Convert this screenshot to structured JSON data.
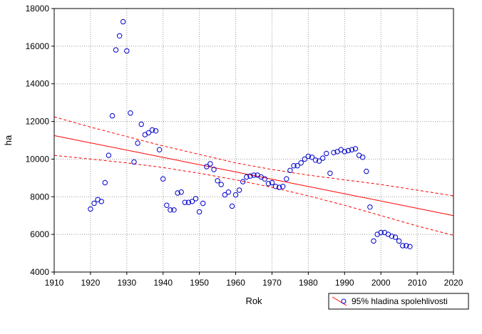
{
  "chart_data": {
    "type": "scatter",
    "title": "",
    "xlabel": "Rok",
    "ylabel": "ha",
    "xlim": [
      1910,
      2020
    ],
    "ylim": [
      4000,
      18000
    ],
    "xticks": [
      1910,
      1920,
      1930,
      1940,
      1950,
      1960,
      1970,
      1980,
      1990,
      2000,
      2010,
      2020
    ],
    "yticks": [
      4000,
      6000,
      8000,
      10000,
      12000,
      14000,
      16000,
      18000
    ],
    "grid": true,
    "legend_position": "bottom-right",
    "legend_label": "95% hladina spolehlivosti",
    "colors": {
      "points": "#0000cc",
      "fit": "#ff0000",
      "ci": "#ff0000"
    },
    "points": {
      "x": [
        1920,
        1921,
        1922,
        1923,
        1924,
        1925,
        1926,
        1927,
        1928,
        1929,
        1930,
        1931,
        1932,
        1933,
        1934,
        1935,
        1936,
        1937,
        1938,
        1939,
        1940,
        1941,
        1942,
        1943,
        1944,
        1945,
        1946,
        1947,
        1948,
        1949,
        1950,
        1951,
        1952,
        1953,
        1954,
        1955,
        1956,
        1957,
        1958,
        1959,
        1960,
        1961,
        1962,
        1963,
        1964,
        1965,
        1966,
        1967,
        1968,
        1969,
        1970,
        1971,
        1972,
        1973,
        1974,
        1975,
        1976,
        1977,
        1978,
        1979,
        1980,
        1981,
        1982,
        1983,
        1984,
        1985,
        1986,
        1987,
        1988,
        1989,
        1990,
        1991,
        1992,
        1993,
        1994,
        1995,
        1996,
        1997,
        1998,
        1999,
        2000,
        2001,
        2002,
        2003,
        2004,
        2005,
        2006,
        2007,
        2008
      ],
      "y": [
        7350,
        7650,
        7850,
        7750,
        8750,
        10200,
        12300,
        15800,
        16550,
        17300,
        15750,
        12450,
        9850,
        10850,
        11850,
        11300,
        11400,
        11550,
        11500,
        10500,
        8950,
        7550,
        7300,
        7300,
        8200,
        8250,
        7700,
        7700,
        7750,
        7900,
        7200,
        7650,
        9600,
        9750,
        9450,
        8850,
        8650,
        8100,
        8250,
        7500,
        8100,
        8350,
        8800,
        9050,
        9100,
        9150,
        9150,
        9050,
        8950,
        8700,
        8750,
        8550,
        8500,
        8550,
        8950,
        9400,
        9650,
        9650,
        9800,
        10000,
        10150,
        10100,
        9950,
        9900,
        10050,
        10300,
        9250,
        10350,
        10400,
        10500,
        10400,
        10450,
        10500,
        10550,
        10200,
        10100,
        9350,
        7450,
        5650,
        6000,
        6100,
        6100,
        6000,
        5900,
        5850,
        5650,
        5400,
        5400,
        5350
      ]
    },
    "fit_line": {
      "x": [
        1910,
        2020
      ],
      "y": [
        11250,
        7000
      ]
    },
    "ci_upper": {
      "x": [
        1910,
        1920,
        1930,
        1940,
        1950,
        1960,
        1970,
        1980,
        1990,
        2000,
        2010,
        2020
      ],
      "y": [
        12250,
        11700,
        11200,
        10700,
        10250,
        9800,
        9450,
        9150,
        8900,
        8650,
        8350,
        8050
      ]
    },
    "ci_lower": {
      "x": [
        1910,
        1920,
        1930,
        1940,
        1950,
        1960,
        1970,
        1980,
        1990,
        2000,
        2010,
        2020
      ],
      "y": [
        10200,
        10000,
        9800,
        9550,
        9250,
        8900,
        8500,
        8050,
        7550,
        7000,
        6450,
        5950
      ]
    }
  }
}
